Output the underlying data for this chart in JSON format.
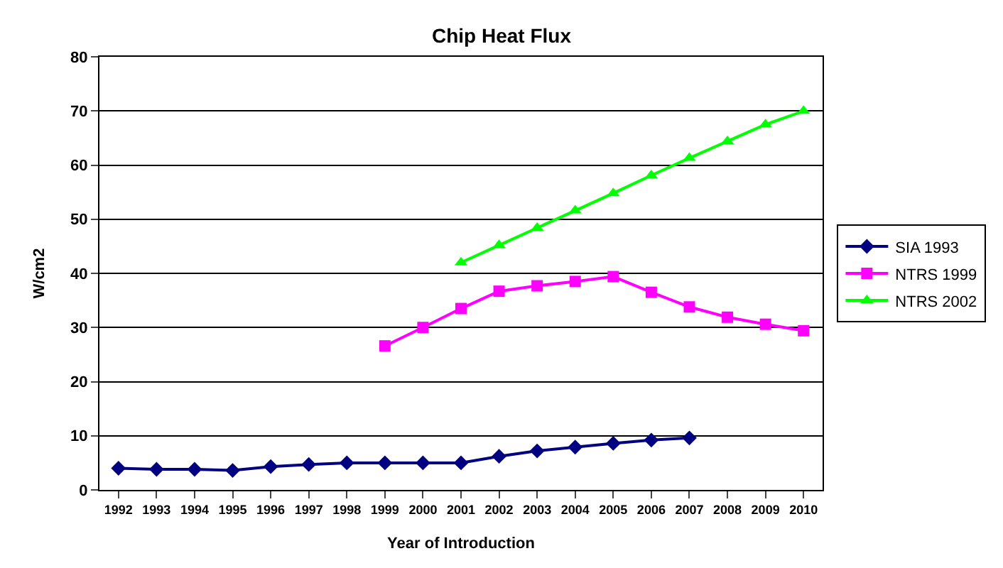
{
  "chart_data": {
    "type": "line",
    "title": "Chip Heat Flux",
    "xlabel": "Year of Introduction",
    "ylabel": "W/cm2",
    "categories": [
      "1992",
      "1993",
      "1994",
      "1995",
      "1996",
      "1997",
      "1998",
      "1999",
      "2000",
      "2001",
      "2002",
      "2003",
      "2004",
      "2005",
      "2006",
      "2007",
      "2008",
      "2009",
      "2010"
    ],
    "series": [
      {
        "name": "SIA 1993",
        "color": "#000080",
        "marker": "diamond",
        "values": [
          4,
          3.8,
          3.8,
          3.6,
          4.3,
          4.7,
          5,
          5,
          5,
          5,
          6.2,
          7.2,
          7.9,
          8.6,
          9.2,
          9.6,
          null,
          null,
          null
        ]
      },
      {
        "name": "NTRS 1999",
        "color": "#ff00ff",
        "marker": "square",
        "values": [
          null,
          null,
          null,
          null,
          null,
          null,
          null,
          26.6,
          30,
          33.5,
          36.7,
          37.7,
          38.5,
          39.4,
          36.5,
          33.8,
          31.9,
          30.6,
          29.4
        ]
      },
      {
        "name": "NTRS 2002",
        "color": "#00ff00",
        "marker": "triangle",
        "values": [
          null,
          null,
          null,
          null,
          null,
          null,
          null,
          null,
          null,
          42,
          45.2,
          48.4,
          51.6,
          54.8,
          58.1,
          61.3,
          64.4,
          67.5,
          70
        ]
      }
    ],
    "ylim": [
      0,
      80
    ],
    "yticks": [
      0,
      10,
      20,
      30,
      40,
      50,
      60,
      70,
      80
    ],
    "grid": "y",
    "legend": "right",
    "line_style": "solid"
  }
}
